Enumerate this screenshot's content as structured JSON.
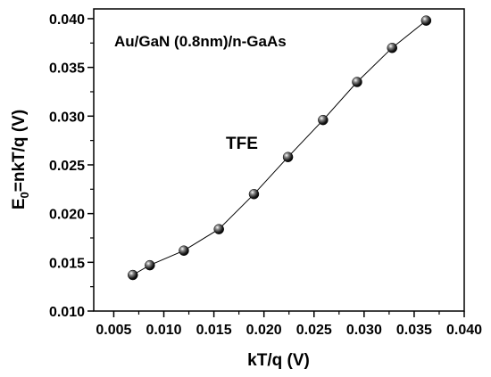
{
  "chart_data": {
    "type": "line",
    "xlabel": "kT/q (V)",
    "ylabel_main": "E",
    "ylabel_sub": "0",
    "ylabel_rest": "=nkT/q (V)",
    "xlim": [
      0.003,
      0.04
    ],
    "ylim": [
      0.01,
      0.041
    ],
    "x_ticks": [
      "0.005",
      "0.010",
      "0.015",
      "0.020",
      "0.025",
      "0.030",
      "0.035",
      "0.040"
    ],
    "y_ticks": [
      "0.010",
      "0.015",
      "0.020",
      "0.025",
      "0.030",
      "0.035",
      "0.040"
    ],
    "annotations": {
      "sample": "Au/GaN (0.8nm)/n-GaAs",
      "mechanism": "TFE"
    },
    "grid": false,
    "series": [
      {
        "marker": "sphere",
        "x": [
          0.0069,
          0.0086,
          0.012,
          0.0155,
          0.019,
          0.0224,
          0.0259,
          0.0293,
          0.0328,
          0.0362
        ],
        "y": [
          0.0137,
          0.0147,
          0.0162,
          0.0184,
          0.022,
          0.0258,
          0.0296,
          0.0335,
          0.037,
          0.0398
        ]
      }
    ]
  },
  "colors": {
    "axis": "#000000",
    "line": "#000000",
    "marker": "#111111"
  }
}
